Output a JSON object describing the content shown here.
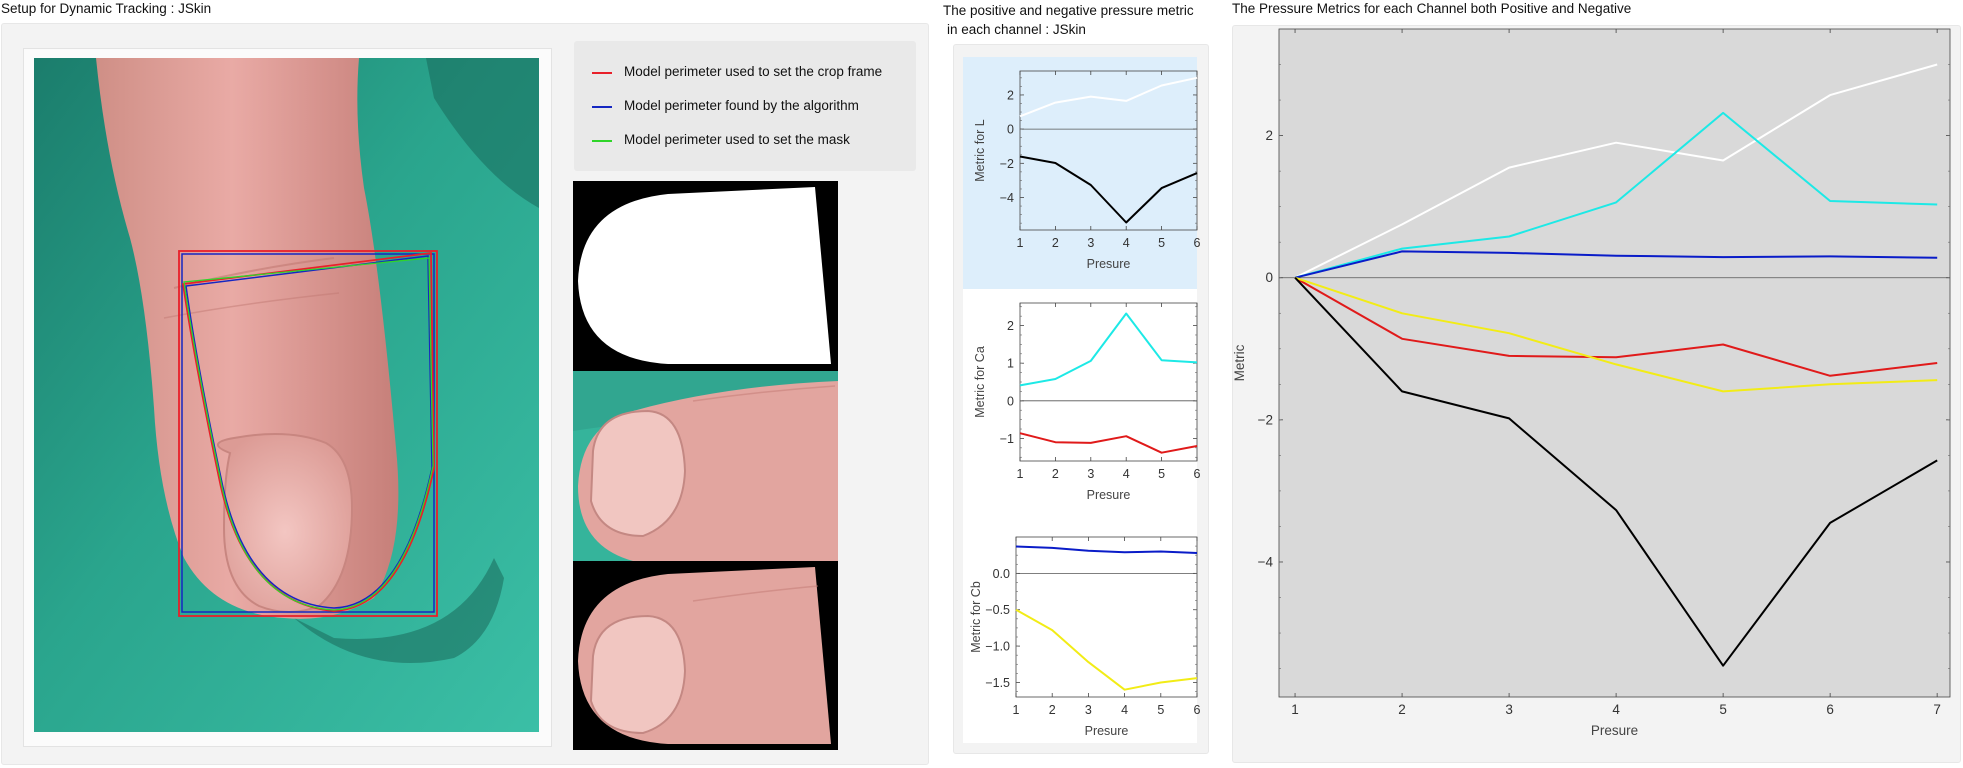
{
  "titles": {
    "setup": "Setup for Dynamic Tracking : JSkin",
    "channel_line1": "The positive and negative pressure metric",
    "channel_line2": "in each channel : JSkin",
    "combined": "The Pressure Metrics for each Channel both Positive and Negative"
  },
  "legend": {
    "items": [
      {
        "label": "Model perimeter used to set the crop frame",
        "color": "#e8202a"
      },
      {
        "label": "Model perimeter found by the algorithm",
        "color": "#1527c2"
      },
      {
        "label": "Model perimeter used to set the mask",
        "color": "#2fd52a"
      }
    ]
  },
  "colors": {
    "white_series": "#ffffff",
    "cyan": "#1de9e6",
    "blue": "#0a1cc8",
    "red": "#e01a1a",
    "yellow": "#f2ec16",
    "black": "#000000",
    "plot_bg_grey": "#d9d9d9",
    "plot_bg_blue": "#ddeefb",
    "teal_background": "#2aa58d",
    "skin": "#e8a39e"
  },
  "chart_data": [
    {
      "type": "line",
      "ylabel": "Metric for L",
      "xlabel": "Presure",
      "x": [
        1,
        2,
        3,
        4,
        5,
        6
      ],
      "xticks": [
        "1",
        "2",
        "3",
        "4",
        "5",
        "6"
      ],
      "ylim": [
        -5.9,
        3.4
      ],
      "yticks": [
        2,
        0,
        -2,
        -4
      ],
      "ytick_labels": [
        "2",
        "0",
        "−2",
        "−4"
      ],
      "background": "light-blue",
      "series": [
        {
          "color": "#ffffff",
          "values": [
            0.75,
            1.55,
            1.9,
            1.65,
            2.55,
            3.0
          ]
        },
        {
          "color": "#000000",
          "values": [
            -1.6,
            -1.98,
            -3.27,
            -5.46,
            -3.45,
            -2.57
          ]
        }
      ]
    },
    {
      "type": "line",
      "ylabel": "Metric for Ca",
      "xlabel": "Presure",
      "x": [
        1,
        2,
        3,
        4,
        5,
        6
      ],
      "xticks": [
        "1",
        "2",
        "3",
        "4",
        "5",
        "6"
      ],
      "ylim": [
        -1.6,
        2.6
      ],
      "yticks": [
        2,
        1,
        0,
        -1
      ],
      "ytick_labels": [
        "2",
        "1",
        "0",
        "−1"
      ],
      "background": "white",
      "series": [
        {
          "color": "#1de9e6",
          "values": [
            0.41,
            0.58,
            1.06,
            2.32,
            1.08,
            1.02
          ]
        },
        {
          "color": "#e01a1a",
          "values": [
            -0.86,
            -1.1,
            -1.12,
            -0.94,
            -1.38,
            -1.2
          ]
        }
      ]
    },
    {
      "type": "line",
      "ylabel": "Metric for Cb",
      "xlabel": "Presure",
      "x": [
        1,
        2,
        3,
        4,
        5,
        6
      ],
      "xticks": [
        "1",
        "2",
        "3",
        "4",
        "5",
        "6"
      ],
      "ylim": [
        -1.7,
        0.5
      ],
      "yticks": [
        0.0,
        -0.5,
        -1.0,
        -1.5
      ],
      "ytick_labels": [
        "0.0",
        "−0.5",
        "−1.0",
        "−1.5"
      ],
      "background": "white",
      "series": [
        {
          "color": "#0a1cc8",
          "values": [
            0.37,
            0.35,
            0.31,
            0.29,
            0.3,
            0.28
          ]
        },
        {
          "color": "#f2ec16",
          "values": [
            -0.5,
            -0.78,
            -1.22,
            -1.6,
            -1.5,
            -1.44
          ]
        }
      ]
    },
    {
      "type": "line",
      "ylabel": "Metric",
      "xlabel": "Presure",
      "x": [
        1,
        2,
        3,
        4,
        5,
        6,
        7
      ],
      "xticks": [
        "1",
        "2",
        "3",
        "4",
        "5",
        "6",
        "7"
      ],
      "ylim": [
        -5.9,
        3.5
      ],
      "yticks": [
        2,
        0,
        -2,
        -4
      ],
      "ytick_labels": [
        "2",
        "0",
        "−2",
        "−4"
      ],
      "background": "grey",
      "series": [
        {
          "color": "#ffffff",
          "values": [
            0,
            0.75,
            1.55,
            1.9,
            1.65,
            2.57,
            3.0
          ]
        },
        {
          "color": "#1de9e6",
          "values": [
            0,
            0.41,
            0.58,
            1.06,
            2.32,
            1.08,
            1.03
          ]
        },
        {
          "color": "#0a1cc8",
          "values": [
            0,
            0.37,
            0.35,
            0.31,
            0.29,
            0.3,
            0.28
          ]
        },
        {
          "color": "#e01a1a",
          "values": [
            0,
            -0.86,
            -1.1,
            -1.12,
            -0.94,
            -1.38,
            -1.2
          ]
        },
        {
          "color": "#f2ec16",
          "values": [
            0,
            -0.5,
            -0.78,
            -1.22,
            -1.6,
            -1.5,
            -1.44
          ]
        },
        {
          "color": "#000000",
          "values": [
            0,
            -1.6,
            -1.98,
            -3.27,
            -5.46,
            -3.45,
            -2.57
          ]
        }
      ]
    }
  ]
}
